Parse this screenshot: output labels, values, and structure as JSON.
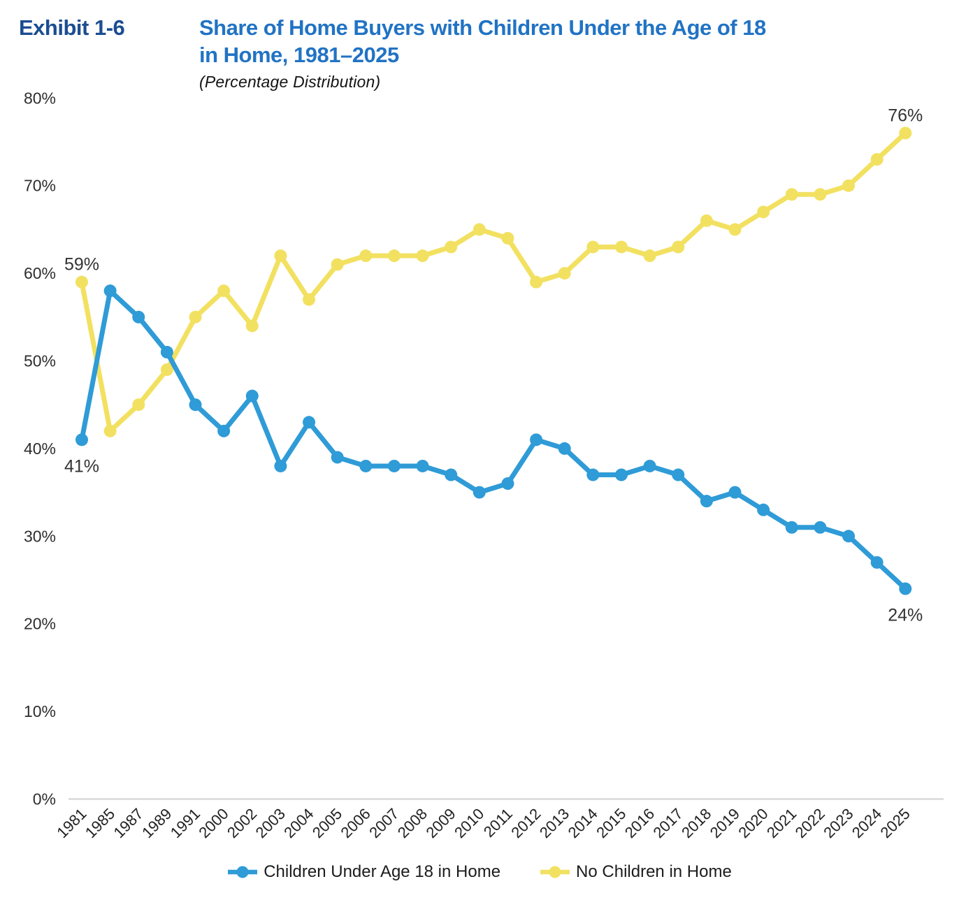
{
  "exhibit_label": "Exhibit 1-6",
  "title": {
    "line1": "Share of Home Buyers with Children Under the Age of 18",
    "line2": "in Home, 1981–2025",
    "subtitle": "(Percentage Distribution)"
  },
  "colors": {
    "exhibit_label": "#1b4d91",
    "title": "#2173c4",
    "axis_line": "#d9d9d9",
    "tick_text": "#2e2e2e",
    "annotation_text": "#333333",
    "series_children": "#2f9bd7",
    "series_no_children": "#f2e161"
  },
  "chart_data": {
    "type": "line",
    "title": "Share of Home Buyers with Children Under the Age of 18 in Home, 1981–2025",
    "subtitle": "(Percentage Distribution)",
    "categories": [
      "1981",
      "1985",
      "1987",
      "1989",
      "1991",
      "2000",
      "2002",
      "2003",
      "2004",
      "2005",
      "2006",
      "2007",
      "2008",
      "2009",
      "2010",
      "2011",
      "2012",
      "2013",
      "2014",
      "2015",
      "2016",
      "2017",
      "2018",
      "2019",
      "2020",
      "2021",
      "2022",
      "2023",
      "2024",
      "2025"
    ],
    "series": [
      {
        "name": "Children Under Age 18 in Home",
        "color": "#2f9bd7",
        "values": [
          41,
          58,
          55,
          51,
          45,
          42,
          46,
          38,
          43,
          39,
          38,
          38,
          38,
          37,
          35,
          36,
          41,
          40,
          37,
          37,
          38,
          37,
          34,
          35,
          33,
          31,
          31,
          30,
          27,
          24
        ]
      },
      {
        "name": "No Children in Home",
        "color": "#f2e161",
        "values": [
          59,
          42,
          45,
          49,
          55,
          58,
          54,
          62,
          57,
          61,
          62,
          62,
          62,
          63,
          65,
          64,
          59,
          60,
          63,
          63,
          62,
          63,
          66,
          65,
          67,
          69,
          69,
          70,
          73,
          76
        ]
      }
    ],
    "ylim": [
      0,
      80
    ],
    "y_ticks": [
      "0%",
      "10%",
      "20%",
      "30%",
      "40%",
      "50%",
      "60%",
      "70%",
      "80%"
    ],
    "grid": "off",
    "legend_position": "bottom",
    "annotations": [
      {
        "series": 1,
        "index": 0,
        "text": "59%",
        "position": "above"
      },
      {
        "series": 0,
        "index": 0,
        "text": "41%",
        "position": "below"
      },
      {
        "series": 1,
        "index": 29,
        "text": "76%",
        "position": "above"
      },
      {
        "series": 0,
        "index": 29,
        "text": "24%",
        "position": "below"
      }
    ]
  }
}
